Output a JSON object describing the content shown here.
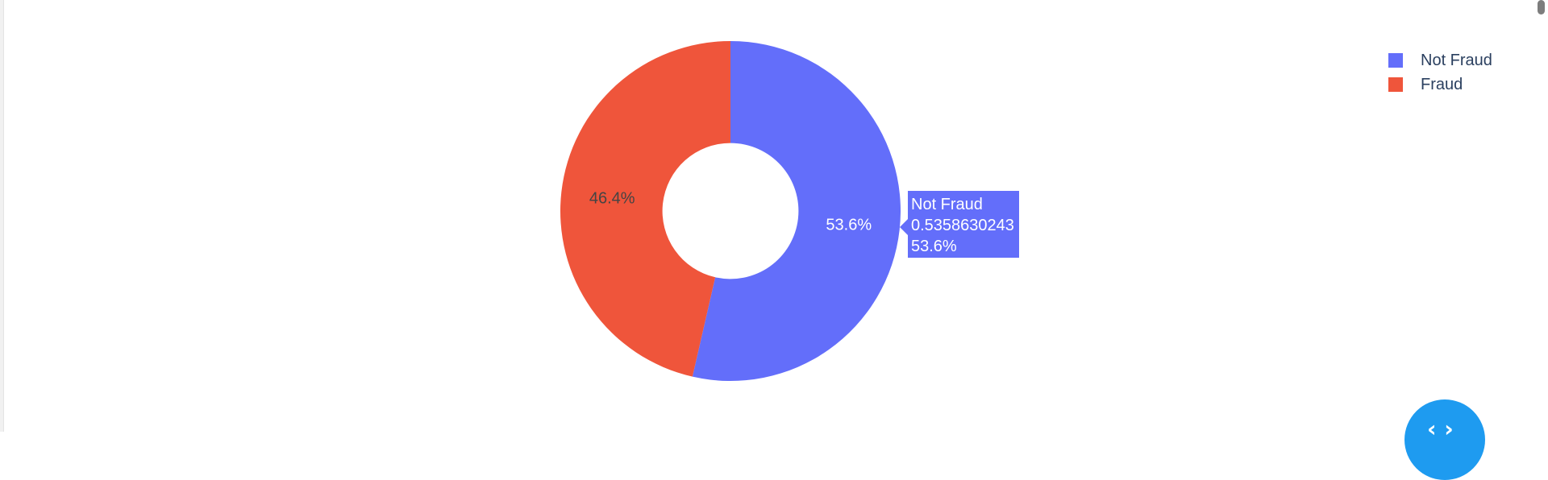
{
  "colors": {
    "not_fraud": "#636efa",
    "fraud": "#ef553b",
    "inside_text": "#ffffff",
    "outside_text": "#444444",
    "fab": "#1e9bf0"
  },
  "chart_data": {
    "type": "pie",
    "hole": 0.4,
    "labels": [
      "Not Fraud",
      "Fraud"
    ],
    "values": [
      0.5358630243,
      0.4641369757
    ],
    "percent_labels": [
      "53.6%",
      "46.4%"
    ],
    "legend_placement": "top-right"
  },
  "legend": {
    "items": [
      {
        "label": "Not Fraud",
        "color": "#636efa"
      },
      {
        "label": "Fraud",
        "color": "#ef553b"
      }
    ]
  },
  "tooltip": {
    "label": "Not Fraud",
    "value": "0.5358630243",
    "percent": "53.6%",
    "color": "#636efa"
  },
  "fab": {
    "icon": "expand-arrows-icon",
    "glyph": "‹ ›"
  }
}
